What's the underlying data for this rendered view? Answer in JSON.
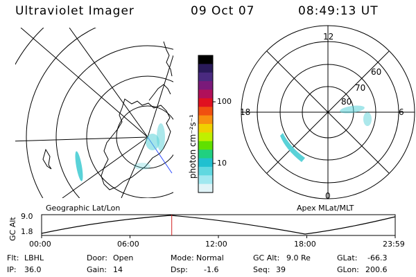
{
  "header": {
    "title": "Ultraviolet Imager",
    "date": "09 Oct 07",
    "time": "08:49:13 UT"
  },
  "colorbar": {
    "unit_label": "photon cm⁻²s⁻¹",
    "ticks": [
      "100",
      "10"
    ],
    "colors": [
      "#000000",
      "#2a1a5a",
      "#4a2a80",
      "#7a1a7a",
      "#b0105a",
      "#e01020",
      "#f05010",
      "#f89010",
      "#f0d000",
      "#c0f000",
      "#60e000",
      "#20d080",
      "#20c0d0",
      "#60d8e0",
      "#a0e8f0",
      "#e0f4f8"
    ]
  },
  "geographic_map": {
    "label": "Geographic Lat/Lon"
  },
  "apex_map": {
    "label": "Apex MLat/MLT",
    "mlt_labels": {
      "top": "12",
      "left": "18",
      "right": "6",
      "bottom": "0"
    },
    "mlat_labels": [
      "60",
      "70",
      "80"
    ]
  },
  "altitude_plot": {
    "ylabel": "GC Alt",
    "yticks": [
      "9.0",
      "1.8"
    ],
    "xticks": [
      "00:00",
      "06:00",
      "12:00",
      "18:00",
      "23:59"
    ],
    "current_time_fraction": 0.368
  },
  "footer": {
    "row1": [
      {
        "label": "Flt:",
        "value": "LBHL"
      },
      {
        "label": "Door:",
        "value": "Open"
      },
      {
        "label": "Mode:",
        "value": "Normal"
      },
      {
        "label": "GC Alt:",
        "value": "9.0 Re"
      },
      {
        "label": "GLat:",
        "value": "-66.3"
      }
    ],
    "row2": [
      {
        "label": "IP:",
        "value": "36.0"
      },
      {
        "label": "Gain:",
        "value": "14"
      },
      {
        "label": "Dsp:",
        "value": "-1.6"
      },
      {
        "label": "Seq:",
        "value": "39"
      },
      {
        "label": "GLon:",
        "value": "200.6"
      }
    ]
  }
}
